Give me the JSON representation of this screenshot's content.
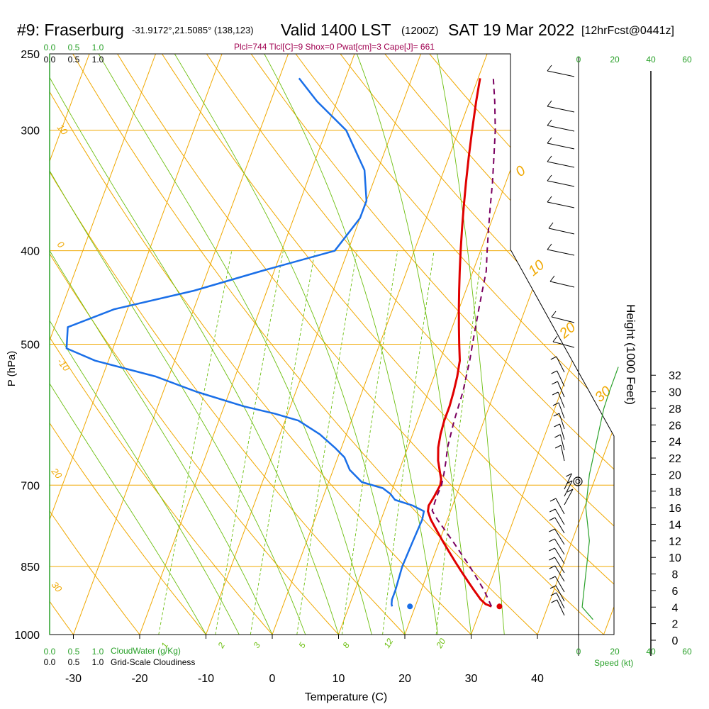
{
  "header": {
    "station": "#9: Fraserburg",
    "coords": "-31.9172°,21.5085° (138,123)",
    "valid": "Valid 1400 LST",
    "zulu": "(1200Z)",
    "date": "SAT 19 Mar 2022",
    "forecast": "[12hrFcst@0441z]",
    "indices": "Plcl=744 Tlcl[C]=9 Shox=0 Pwat[cm]=3 Cape[J]= 661"
  },
  "bottom": {
    "cloudwater_label": "CloudWater (g/Kg)",
    "cloudiness_label": "Grid-Scale Cloudiness",
    "speed_label": "Speed (kt)"
  },
  "colors": {
    "isobar": "#f0a800",
    "mixing": "#6cbf10",
    "temperature": "#e00000",
    "dewpoint": "#1a6fe8",
    "parcel": "#7a0060",
    "wind_speed": "#2aa12a"
  },
  "chart_data": {
    "type": "line",
    "title": "#9: Fraserburg",
    "xlabel": "Temperature (C)",
    "ylabel": "P (hPa)",
    "y2label": "Height (1000 Feet)",
    "xlim": [
      -34,
      52
    ],
    "ylim": [
      1000,
      250
    ],
    "y_scale": "log",
    "x_ticks": [
      -30,
      -20,
      -10,
      0,
      10,
      20,
      30,
      40
    ],
    "p_ticks": [
      250,
      300,
      400,
      500,
      700,
      850,
      1000
    ],
    "height_ticks": [
      0,
      2,
      4,
      6,
      8,
      10,
      12,
      14,
      16,
      18,
      20,
      22,
      24,
      26,
      28,
      30,
      32
    ],
    "cloud_top_ticks": [
      "0.0",
      "0.5",
      "1.0"
    ],
    "cloud_top_ticks_green": [
      "0.0",
      "0.5",
      "1.0"
    ],
    "speed_ticks": [
      0,
      20,
      40,
      60
    ],
    "dry_adiabat_labels": [
      "-10",
      "0",
      "10",
      "20",
      "30"
    ],
    "dry_adiabat_labels_right": [
      "0",
      "10",
      "20",
      "30"
    ],
    "mixing_ratio_labels": [
      "1",
      "2",
      "3",
      "5",
      "8",
      "12",
      "20"
    ],
    "series": [
      {
        "name": "Temperature",
        "p": [
          935,
          930,
          920,
          900,
          880,
          860,
          840,
          820,
          800,
          780,
          760,
          745,
          735,
          720,
          700,
          690,
          680,
          660,
          640,
          620,
          600,
          580,
          560,
          540,
          520,
          500,
          480,
          460,
          440,
          420,
          400,
          380,
          360,
          340,
          320,
          300,
          280,
          265
        ],
        "t": [
          31.5,
          30.5,
          29.5,
          28,
          26.5,
          25,
          23.5,
          22,
          20.5,
          19,
          17.5,
          16.6,
          16.4,
          16.7,
          17.0,
          16.8,
          16.3,
          15.3,
          14.6,
          14.2,
          14.0,
          14.0,
          13.8,
          13.5,
          13.0,
          12.0,
          11.0,
          10.0,
          9.0,
          8.0,
          7.0,
          6.0,
          5.0,
          4.0,
          3.0,
          2.0,
          1.0,
          0.3
        ]
      },
      {
        "name": "Dewpoint",
        "p": [
          935,
          930,
          920,
          900,
          850,
          800,
          760,
          745,
          735,
          725,
          715,
          705,
          695,
          675,
          655,
          640,
          620,
          600,
          590,
          580,
          560,
          540,
          520,
          505,
          480,
          460,
          440,
          420,
          400,
          370,
          355,
          330,
          300,
          280,
          265
        ],
        "t": [
          16.5,
          16.3,
          16.1,
          16.1,
          15.8,
          16.0,
          16.2,
          16.0,
          14.0,
          11.0,
          10.0,
          8.5,
          5.0,
          2.5,
          1.0,
          -1.0,
          -4.0,
          -8.0,
          -12.0,
          -17.0,
          -25.0,
          -32.0,
          -42.0,
          -47.0,
          -48.0,
          -42.0,
          -31.0,
          -22.0,
          -12.0,
          -10.0,
          -10.0,
          -12.0,
          -17.0,
          -23.0,
          -27.0
        ]
      },
      {
        "name": "Parcel",
        "p": [
          935,
          900,
          850,
          800,
          760,
          744,
          720,
          700,
          680,
          660,
          640,
          600,
          560,
          520,
          500,
          480,
          460,
          440,
          420,
          400,
          380,
          360,
          340,
          320,
          300,
          280,
          265
        ],
        "t": [
          31.5,
          29.5,
          26.0,
          22.0,
          18.5,
          17.2,
          17.1,
          17.2,
          16.9,
          16.5,
          16.0,
          15.5,
          15.2,
          14.5,
          14.0,
          13.5,
          13.0,
          12.5,
          12.0,
          11.0,
          10.0,
          9.0,
          8.0,
          6.8,
          5.5,
          3.8,
          2.3
        ]
      }
    ],
    "surface_points": [
      {
        "name": "Surface temperature",
        "p": 935,
        "t": 32.7
      },
      {
        "name": "Surface dewpoint",
        "p": 935,
        "t": 19.2
      }
    ],
    "cloudwater_g_per_kg": 0,
    "grid_scale_cloudiness": 0,
    "wind_speed_profile": {
      "height_kft": [
        2.5,
        4,
        6,
        8,
        10,
        12,
        14,
        16,
        18,
        20,
        22,
        24,
        26,
        28,
        30,
        33
      ],
      "speed_kt": [
        8,
        2,
        3,
        4,
        5,
        6,
        5,
        4,
        5,
        6,
        8,
        10,
        12,
        14,
        17,
        22
      ]
    }
  }
}
